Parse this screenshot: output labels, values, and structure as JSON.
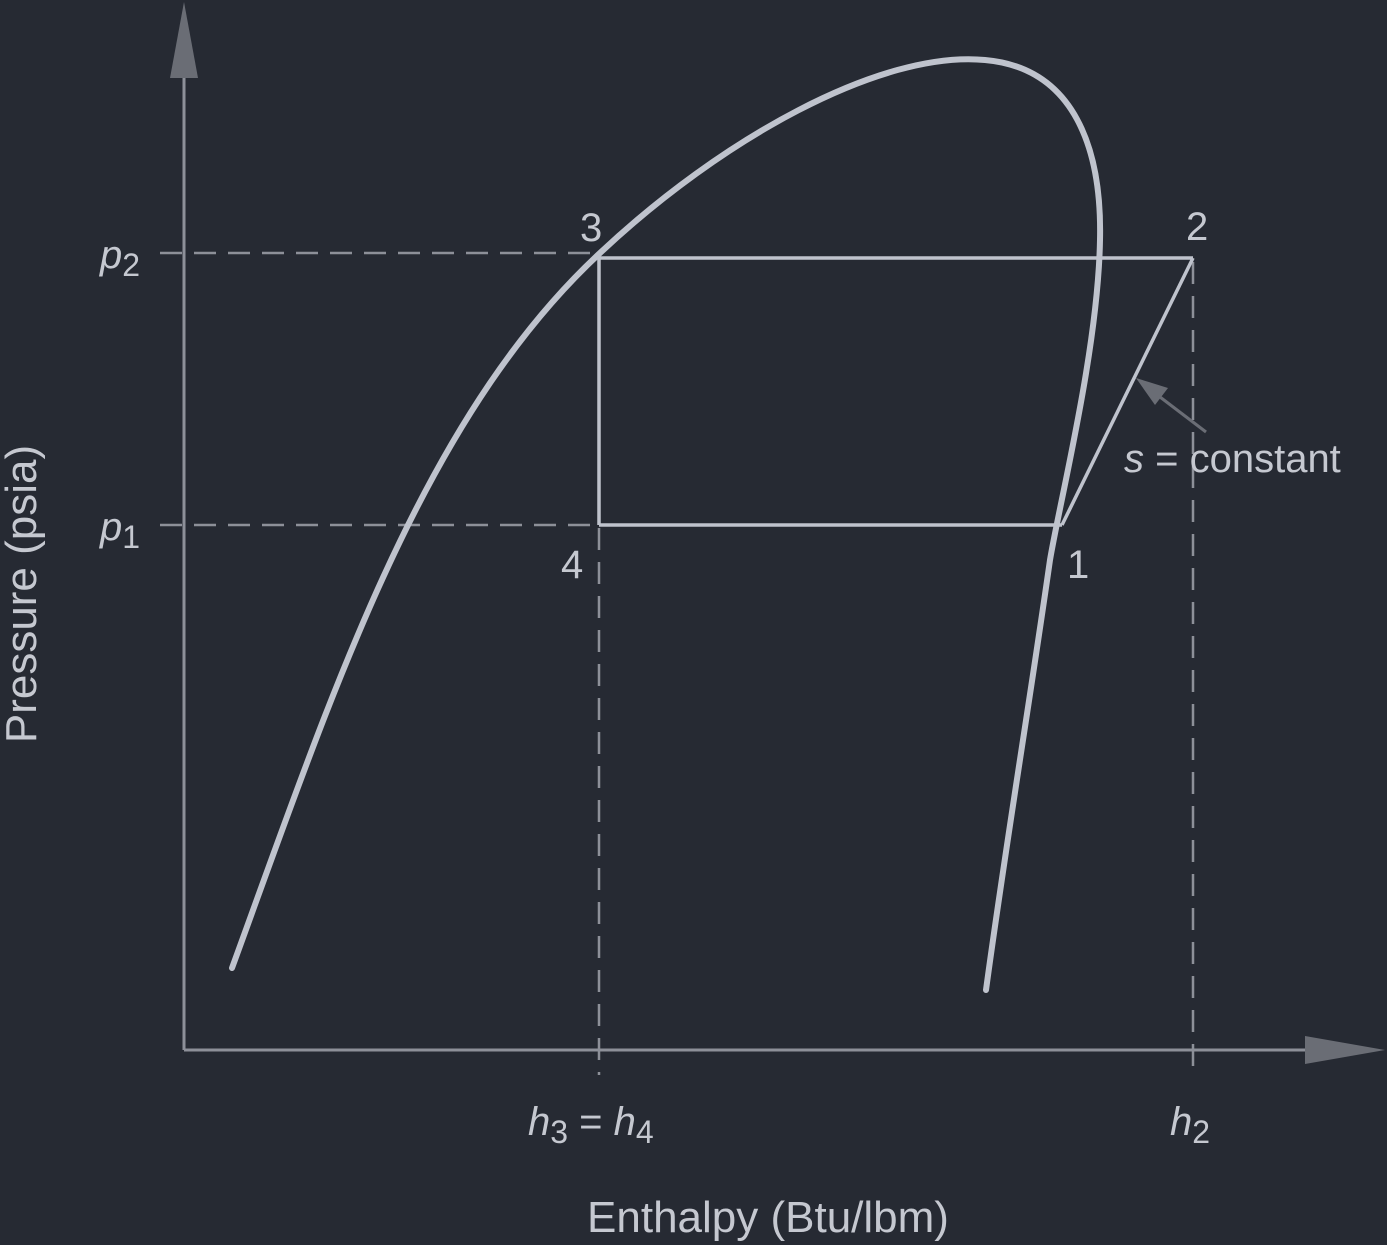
{
  "axes": {
    "y_title": "Pressure (psia)",
    "x_title": "Enthalpy (Btu/lbm)"
  },
  "pressure_labels": {
    "p2": {
      "base": "p",
      "sub": "2"
    },
    "p1": {
      "base": "p",
      "sub": "1"
    }
  },
  "enthalpy_labels": {
    "h34": {
      "base1": "h",
      "sub1": "3",
      "eq": " = ",
      "base2": "h",
      "sub2": "4"
    },
    "h2": {
      "base": "h",
      "sub": "2"
    }
  },
  "state_points": {
    "s1": "1",
    "s2": "2",
    "s3": "3",
    "s4": "4"
  },
  "annotation": {
    "var": "s",
    "rest": " = constant"
  },
  "colors": {
    "background": "#262a33",
    "curve": "#bfc3cd",
    "axis": "#8d9099",
    "text": "#c5c8d0"
  }
}
